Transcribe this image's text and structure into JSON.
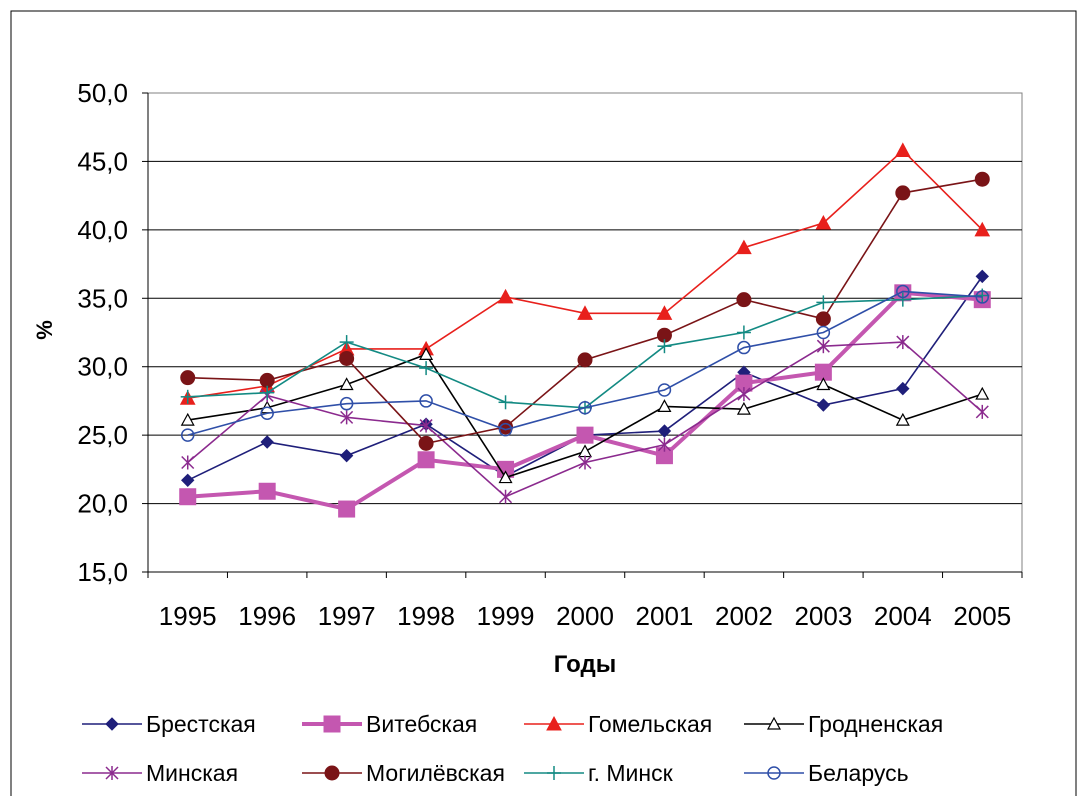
{
  "chart_data": {
    "type": "line",
    "title": "",
    "xlabel": "Годы",
    "ylabel": "%",
    "ylim": [
      15,
      50
    ],
    "y_ticks": [
      "15,0",
      "20,0",
      "25,0",
      "30,0",
      "35,0",
      "40,0",
      "45,0",
      "50,0"
    ],
    "categories": [
      "1995",
      "1996",
      "1997",
      "1998",
      "1999",
      "2000",
      "2001",
      "2002",
      "2003",
      "2004",
      "2005"
    ],
    "grid": "horizontal",
    "legend_position": "bottom",
    "series": [
      {
        "name": "Брестская",
        "color": "#1f1f7a",
        "marker": "diamond",
        "values": [
          21.7,
          24.5,
          23.5,
          25.8,
          22.0,
          25.0,
          25.3,
          29.6,
          27.2,
          28.4,
          36.6
        ]
      },
      {
        "name": "Витебская",
        "color": "#c457b0",
        "marker": "square",
        "values": [
          20.5,
          20.9,
          19.6,
          23.2,
          22.5,
          25.0,
          23.5,
          28.8,
          29.6,
          35.4,
          34.9
        ]
      },
      {
        "name": "Гомельская",
        "color": "#e8201c",
        "marker": "triangle",
        "values": [
          27.7,
          28.6,
          31.3,
          31.3,
          35.1,
          33.9,
          33.9,
          38.7,
          40.5,
          45.8,
          40.0
        ]
      },
      {
        "name": "Гродненская",
        "color": "#000000",
        "marker": "triangle-open",
        "values": [
          26.1,
          27.0,
          28.7,
          30.9,
          21.9,
          23.8,
          27.1,
          26.9,
          28.7,
          26.1,
          28.0
        ]
      },
      {
        "name": "Минская",
        "color": "#8b2a8e",
        "marker": "star",
        "values": [
          23.0,
          27.9,
          26.3,
          25.7,
          20.5,
          23.0,
          24.3,
          28.0,
          31.5,
          31.8,
          26.7
        ]
      },
      {
        "name": "Могилёвская",
        "color": "#7a1417",
        "marker": "circle",
        "values": [
          29.2,
          29.0,
          30.6,
          24.4,
          25.6,
          30.5,
          32.3,
          34.9,
          33.5,
          42.7,
          43.7
        ]
      },
      {
        "name": "г. Минск",
        "color": "#138a83",
        "marker": "plus",
        "values": [
          27.8,
          28.1,
          31.8,
          29.9,
          27.4,
          27.0,
          31.5,
          32.5,
          34.7,
          34.9,
          35.2
        ]
      },
      {
        "name": "Беларусь",
        "color": "#2f4fa8",
        "marker": "circle-open",
        "values": [
          25.0,
          26.6,
          27.3,
          27.5,
          25.4,
          27.0,
          28.3,
          31.4,
          32.5,
          35.5,
          35.1
        ]
      }
    ]
  }
}
